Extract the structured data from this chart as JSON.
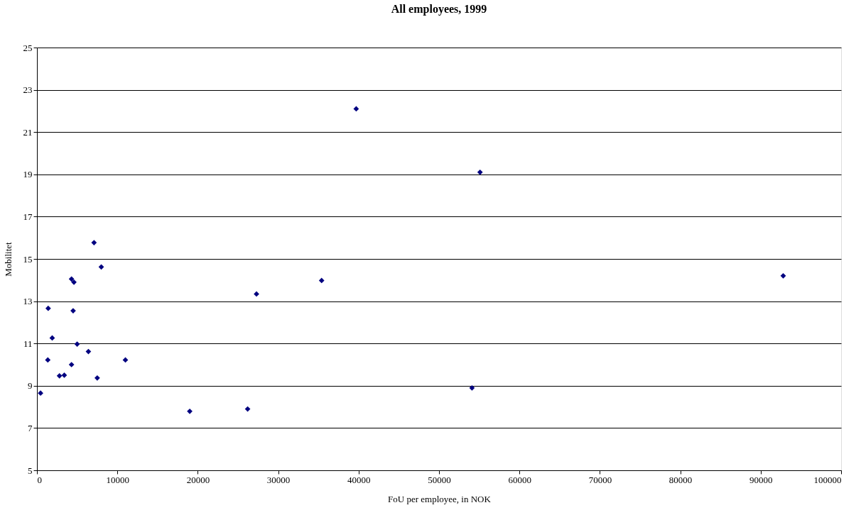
{
  "chart_data": {
    "type": "scatter",
    "title": "All employees, 1999",
    "xlabel": "FoU per employee, in NOK",
    "ylabel": "Mobilitet",
    "x": [
      450,
      1400,
      1350,
      1900,
      2800,
      3400,
      4300,
      4600,
      4500,
      4300,
      5000,
      6400,
      7100,
      7500,
      8000,
      11000,
      19000,
      26200,
      27300,
      35400,
      39700,
      55100,
      54100,
      92800
    ],
    "series": [
      {
        "color": "#000080",
        "values": [
          8.65,
          12.66,
          10.22,
          11.26,
          9.47,
          9.5,
          14.05,
          13.9,
          12.55,
          10.0,
          10.97,
          10.62,
          15.77,
          9.37,
          14.62,
          10.22,
          7.79,
          7.9,
          13.34,
          13.98,
          22.1,
          19.1,
          8.9,
          14.2
        ]
      }
    ],
    "xlim": [
      0,
      100000
    ],
    "xticks": [
      0,
      10000,
      20000,
      30000,
      40000,
      50000,
      60000,
      70000,
      80000,
      90000,
      100000
    ],
    "ylim": [
      5,
      25
    ],
    "yticks": [
      5,
      7,
      9,
      11,
      13,
      15,
      17,
      19,
      21,
      23,
      25
    ],
    "grid": "y",
    "marker": "diamond"
  }
}
